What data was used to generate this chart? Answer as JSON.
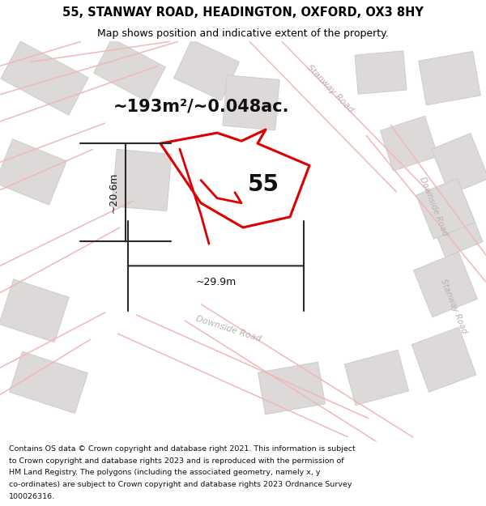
{
  "title": "55, STANWAY ROAD, HEADINGTON, OXFORD, OX3 8HY",
  "subtitle": "Map shows position and indicative extent of the property.",
  "area_label": "~193m²/~0.048ac.",
  "number_label": "55",
  "dim_h": "~20.6m",
  "dim_w": "~29.9m",
  "footer_lines": [
    "Contains OS data © Crown copyright and database right 2021. This information is subject",
    "to Crown copyright and database rights 2023 and is reproduced with the permission of",
    "HM Land Registry. The polygons (including the associated geometry, namely x, y",
    "co-ordinates) are subject to Crown copyright and database rights 2023 Ordnance Survey",
    "100026316."
  ],
  "map_bg": "#f8f5f5",
  "block_fill": "#ddd9d9",
  "block_edge": "#cccccc",
  "road_line_color": "#f0b8b8",
  "property_color": "#dd0000",
  "road_label_color": "#b8b0b0",
  "title_fontsize": 10.5,
  "subtitle_fontsize": 9,
  "area_fontsize": 15,
  "num_fontsize": 20,
  "dim_fontsize": 9,
  "footer_fontsize": 6.8
}
